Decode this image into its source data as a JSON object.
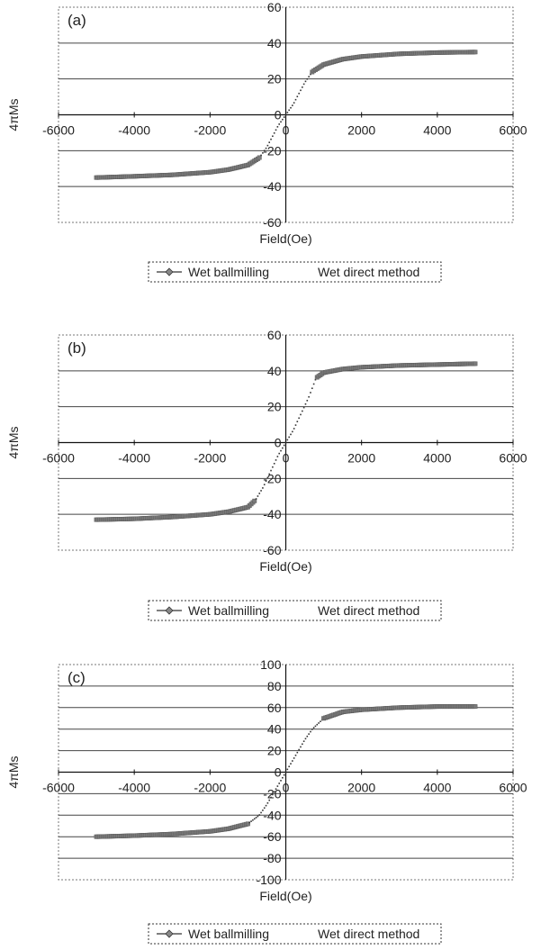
{
  "chart_data": [
    {
      "type": "scatter",
      "panel_label": "(a)",
      "xlabel": "Field(Oe)",
      "ylabel": "4πMs",
      "xlim": [
        -6000,
        6000
      ],
      "ylim": [
        -60,
        60
      ],
      "x_ticks": [
        "-6000",
        "-4000",
        "-2000",
        "0",
        "2000",
        "4000",
        "6000"
      ],
      "y_ticks": [
        "60",
        "40",
        "20",
        "0",
        "-20",
        "-40",
        "-60"
      ],
      "grid": true,
      "legend": [
        "Wet ballmilling",
        "Wet direct method"
      ],
      "legend_placement": "below",
      "series": [
        {
          "name": "Wet ballmilling",
          "color": "#7a7a7a",
          "x": [
            -5000,
            -4000,
            -3000,
            -2000,
            -1500,
            -1000,
            -700,
            -500,
            -300,
            -200,
            -100,
            0,
            100,
            200,
            300,
            500,
            700,
            1000,
            1500,
            2000,
            3000,
            4000,
            5000
          ],
          "y": [
            -35,
            -34.3,
            -33.5,
            -32,
            -30.5,
            -28,
            -24,
            -18,
            -10,
            -6,
            -3,
            0,
            3,
            6,
            10,
            18,
            24,
            28,
            31,
            32.5,
            34,
            34.7,
            35
          ]
        }
      ]
    },
    {
      "type": "scatter",
      "panel_label": "(b)",
      "xlabel": "Field(Oe)",
      "ylabel": "4πMs",
      "xlim": [
        -6000,
        6000
      ],
      "ylim": [
        -60,
        60
      ],
      "x_ticks": [
        "-6000",
        "-4000",
        "-2000",
        "0",
        "2000",
        "4000",
        "6000"
      ],
      "y_ticks": [
        "60",
        "40",
        "20",
        "0",
        "-20",
        "-40",
        "-60"
      ],
      "grid": true,
      "legend": [
        "Wet ballmilling",
        "Wet direct method"
      ],
      "legend_placement": "below",
      "series": [
        {
          "name": "Wet ballmilling",
          "color": "#7a7a7a",
          "x": [
            -5000,
            -4000,
            -3000,
            -2000,
            -1500,
            -1000,
            -800,
            -600,
            -400,
            -200,
            0,
            200,
            400,
            600,
            800,
            1000,
            1500,
            2000,
            3000,
            4000,
            5000
          ],
          "y": [
            -43,
            -42.5,
            -41.5,
            -40,
            -38.5,
            -36,
            -32,
            -25,
            -16,
            -7,
            0,
            7,
            16,
            25,
            36,
            39,
            41,
            42,
            43,
            43.5,
            44
          ]
        }
      ]
    },
    {
      "type": "scatter",
      "panel_label": "(c)",
      "xlabel": "Field(Oe)",
      "ylabel": "4πMs",
      "xlim": [
        -6000,
        6000
      ],
      "ylim": [
        -100,
        100
      ],
      "x_ticks": [
        "-6000",
        "-4000",
        "-2000",
        "0",
        "2000",
        "4000",
        "6000"
      ],
      "y_ticks": [
        "100",
        "80",
        "60",
        "40",
        "20",
        "0",
        "-20",
        "-40",
        "-60",
        "-80",
        "-100"
      ],
      "grid": true,
      "legend": [
        "Wet ballmilling",
        "Wet direct method"
      ],
      "legend_placement": "below",
      "series": [
        {
          "name": "Wet ballmilling",
          "color": "#7a7a7a",
          "x": [
            -5000,
            -4000,
            -3000,
            -2000,
            -1500,
            -1000,
            -700,
            -500,
            -300,
            -100,
            0,
            100,
            300,
            500,
            700,
            1000,
            1500,
            2000,
            3000,
            4000,
            5000
          ],
          "y": [
            -60,
            -59,
            -57.5,
            -55,
            -52.5,
            -48,
            -40,
            -30,
            -18,
            -6,
            0,
            6,
            18,
            30,
            40,
            50,
            56,
            58,
            60,
            61,
            61
          ]
        }
      ]
    }
  ]
}
